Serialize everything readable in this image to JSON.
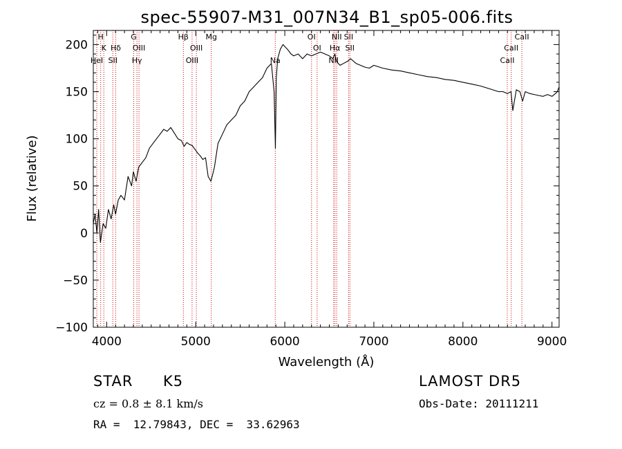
{
  "chart_data": {
    "type": "line",
    "title": "spec-55907-M31_007N34_B1_sp05-006.fits",
    "xlabel": "Wavelength (Å)",
    "ylabel": "Flux (relative)",
    "xlim": [
      3850,
      9080
    ],
    "ylim": [
      -100,
      215
    ],
    "x_ticks": [
      4000,
      5000,
      6000,
      7000,
      8000,
      9000
    ],
    "y_ticks": [
      -100,
      -50,
      0,
      50,
      100,
      150,
      200
    ],
    "grid": false,
    "legend": "none",
    "line_color": "#000000",
    "marker_color": "#cc0000",
    "series": [
      {
        "x": [
          3850,
          3870,
          3890,
          3910,
          3930,
          3960,
          3990,
          4020,
          4050,
          4080,
          4100,
          4130,
          4160,
          4200,
          4240,
          4280,
          4300,
          4330,
          4360,
          4400,
          4440,
          4480,
          4520,
          4560,
          4600,
          4640,
          4680,
          4720,
          4760,
          4800,
          4840,
          4870,
          4900,
          4930,
          4960,
          4990,
          5020,
          5050,
          5080,
          5110,
          5140,
          5170,
          5190,
          5210,
          5250,
          5300,
          5350,
          5400,
          5450,
          5500,
          5550,
          5600,
          5650,
          5700,
          5750,
          5800,
          5850,
          5880,
          5895,
          5905,
          5920,
          5950,
          5980,
          6000,
          6030,
          6070,
          6100,
          6150,
          6200,
          6250,
          6300,
          6350,
          6400,
          6450,
          6500,
          6540,
          6563,
          6580,
          6620,
          6660,
          6700,
          6740,
          6800,
          6850,
          6900,
          6950,
          7000,
          7100,
          7200,
          7300,
          7400,
          7500,
          7600,
          7700,
          7800,
          7900,
          8000,
          8100,
          8200,
          8300,
          8400,
          8450,
          8500,
          8540,
          8560,
          8600,
          8640,
          8670,
          8700,
          8750,
          8800,
          8850,
          8900,
          8950,
          9000,
          9040,
          9060,
          9080
        ],
        "y": [
          10,
          20,
          0,
          25,
          -10,
          10,
          5,
          25,
          15,
          30,
          20,
          35,
          40,
          35,
          60,
          50,
          65,
          55,
          70,
          75,
          80,
          90,
          95,
          100,
          105,
          110,
          108,
          112,
          106,
          100,
          98,
          92,
          96,
          94,
          93,
          89,
          85,
          82,
          78,
          80,
          60,
          55,
          62,
          70,
          95,
          105,
          115,
          120,
          125,
          135,
          140,
          150,
          155,
          160,
          165,
          175,
          180,
          150,
          90,
          165,
          185,
          195,
          200,
          198,
          195,
          190,
          188,
          190,
          185,
          190,
          188,
          190,
          192,
          190,
          188,
          185,
          190,
          182,
          178,
          180,
          182,
          185,
          180,
          178,
          176,
          175,
          178,
          175,
          173,
          172,
          170,
          168,
          166,
          165,
          163,
          162,
          160,
          158,
          156,
          153,
          150,
          150,
          148,
          150,
          130,
          152,
          150,
          140,
          150,
          148,
          147,
          146,
          145,
          147,
          145,
          148,
          150,
          155
        ]
      }
    ],
    "lines": [
      {
        "label": "HeI",
        "x": 3889,
        "row": 3
      },
      {
        "label": "H",
        "x": 3933,
        "row": 1
      },
      {
        "label": "K",
        "x": 3968,
        "row": 2
      },
      {
        "label": "SII",
        "x": 4069,
        "row": 3
      },
      {
        "label": "Hδ",
        "x": 4102,
        "row": 2
      },
      {
        "label": "G",
        "x": 4304,
        "row": 1
      },
      {
        "label": "Hγ",
        "x": 4340,
        "row": 3
      },
      {
        "label": "OIII",
        "x": 4363,
        "row": 2
      },
      {
        "label": "Hβ",
        "x": 4861,
        "row": 1
      },
      {
        "label": "OIII",
        "x": 4959,
        "row": 3
      },
      {
        "label": "OIII",
        "x": 5007,
        "row": 2
      },
      {
        "label": "Mg",
        "x": 5175,
        "row": 1
      },
      {
        "label": "Na",
        "x": 5893,
        "row": 3
      },
      {
        "label": "OI",
        "x": 6300,
        "row": 1
      },
      {
        "label": "OI",
        "x": 6363,
        "row": 2
      },
      {
        "label": "NII",
        "x": 6548,
        "row": 3
      },
      {
        "label": "Hα",
        "x": 6563,
        "row": 2
      },
      {
        "label": "NII",
        "x": 6583,
        "row": 1
      },
      {
        "label": "SII",
        "x": 6716,
        "row": 1
      },
      {
        "label": "SII",
        "x": 6731,
        "row": 2
      },
      {
        "label": "CaII",
        "x": 8498,
        "row": 3
      },
      {
        "label": "CaII",
        "x": 8542,
        "row": 2
      },
      {
        "label": "CaII",
        "x": 8662,
        "row": 1
      }
    ]
  },
  "info": {
    "class_label": "STAR",
    "subclass": "K5",
    "survey": "LAMOST DR5",
    "cz_line": "cz = 0.8 ± 8.1 km/s",
    "obs_date": "Obs-Date: 20111211",
    "coords": "RA =  12.79843, DEC =  33.62963"
  }
}
